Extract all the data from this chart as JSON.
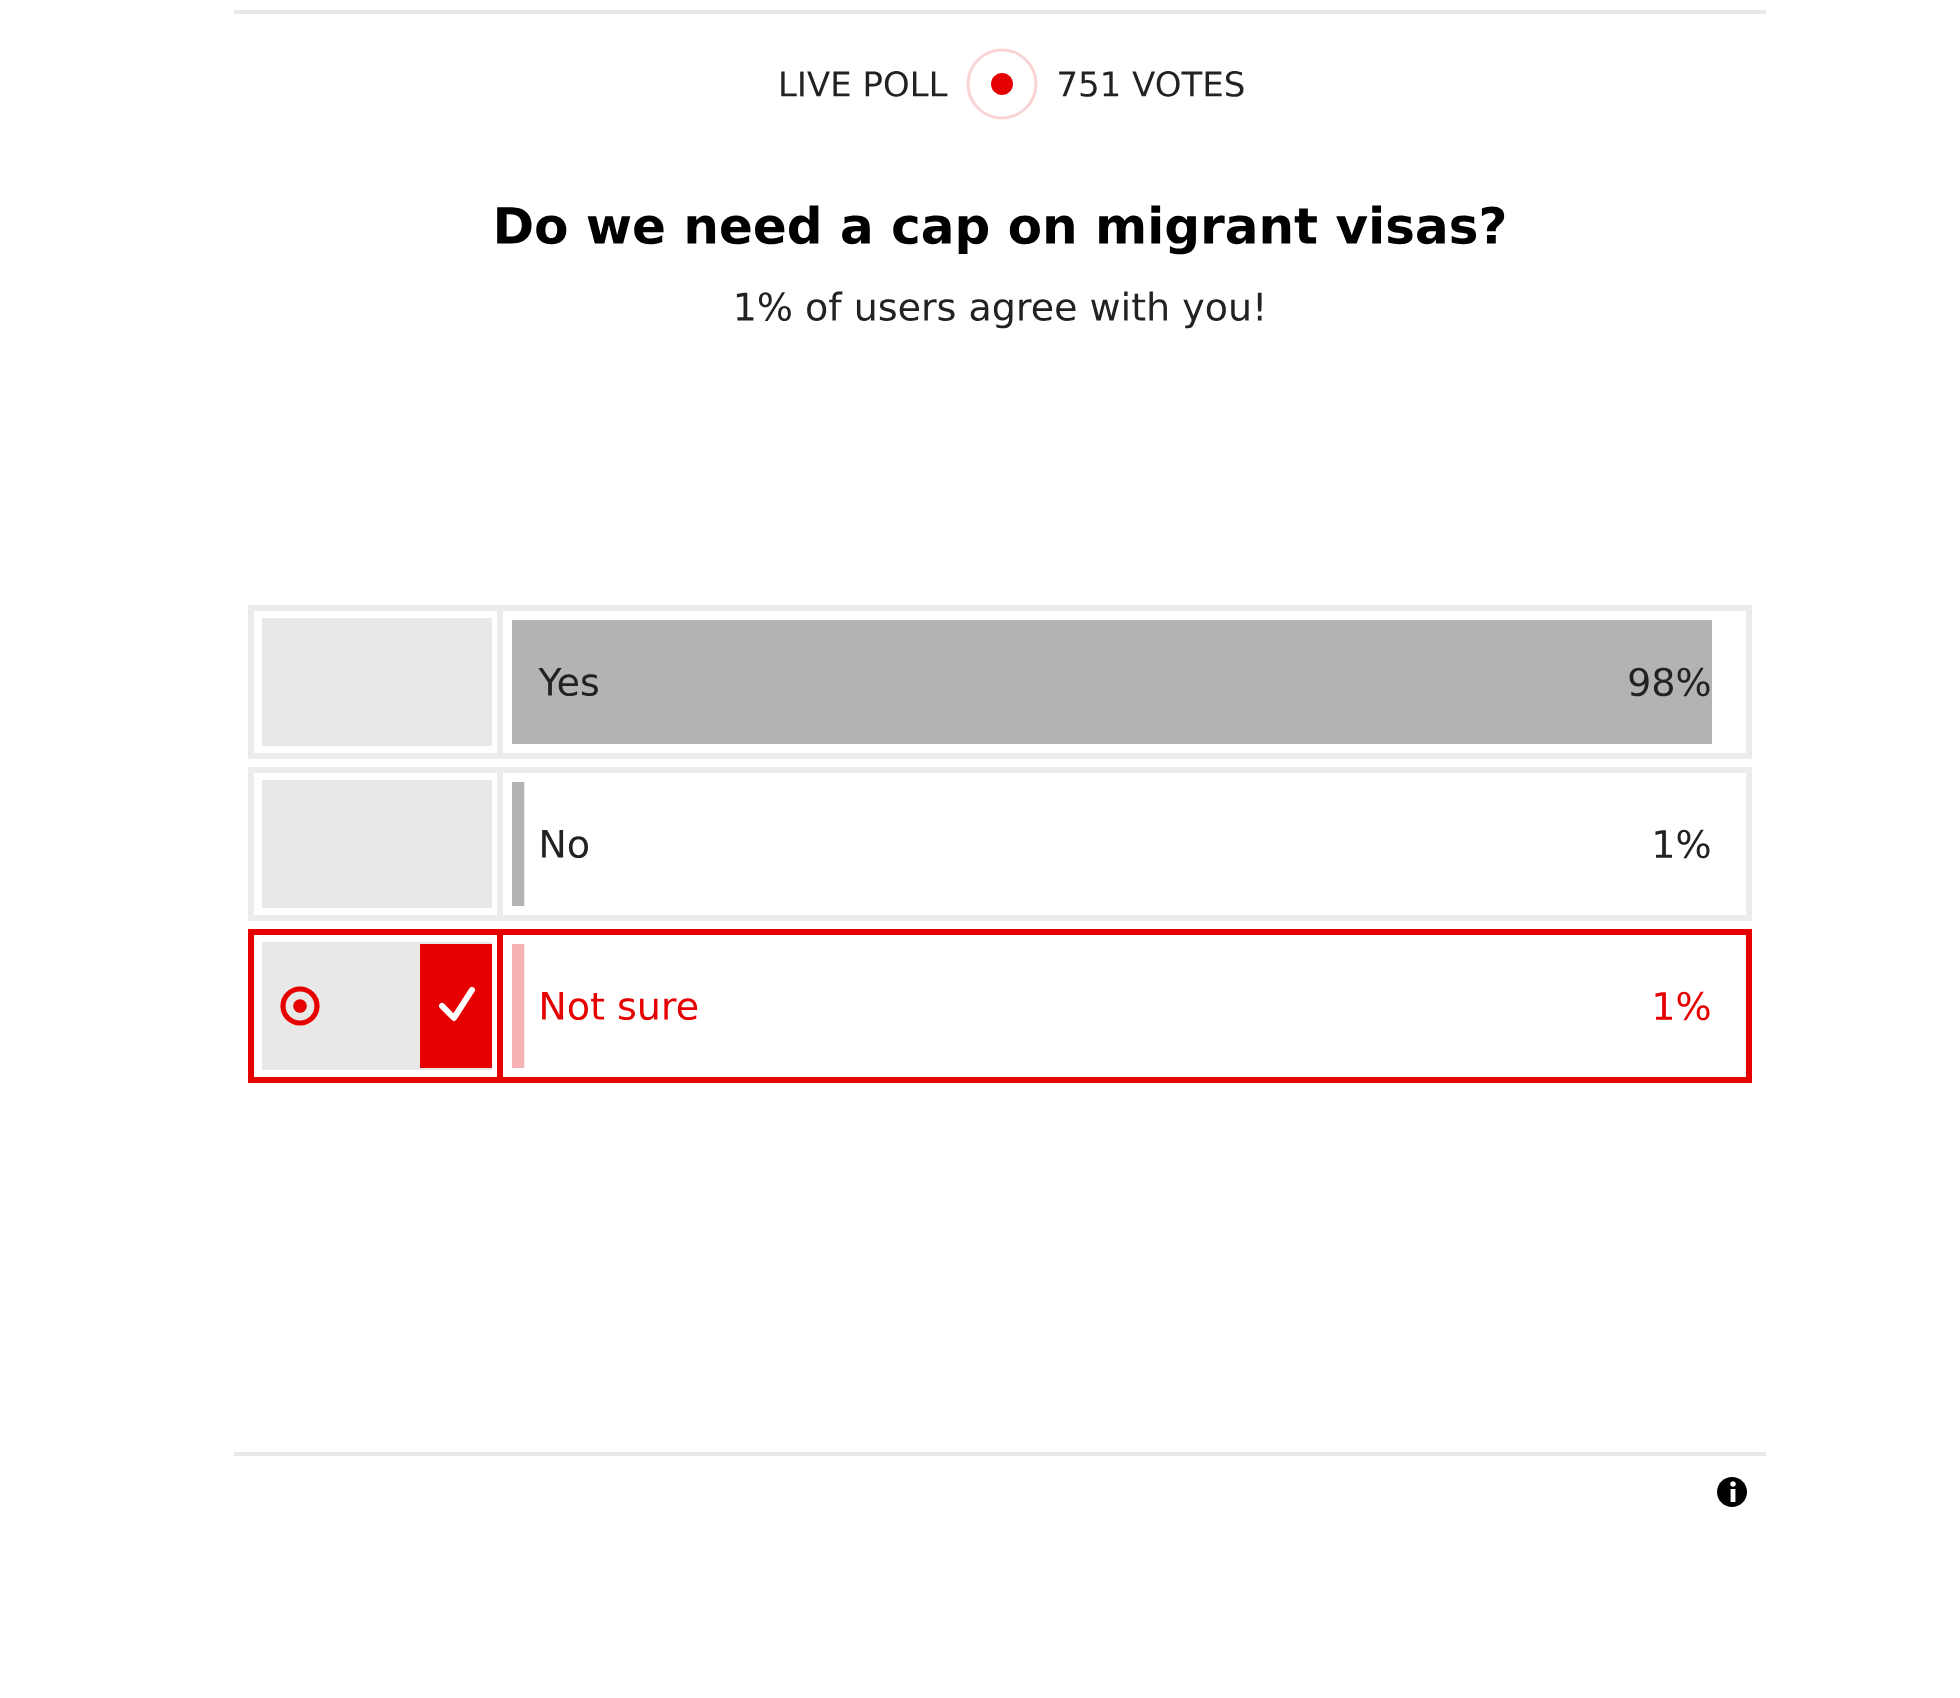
{
  "chart_data": {
    "type": "bar",
    "orientation": "horizontal",
    "title": "Do we need a cap on migrant visas?",
    "subtitle": "1% of users agree with you!",
    "annotations": [
      "LIVE POLL",
      "751 VOTES"
    ],
    "categories": [
      "Yes",
      "No",
      "Not sure"
    ],
    "values": [
      98,
      1,
      1
    ],
    "value_labels": [
      "98%",
      "1%",
      "1%"
    ],
    "colors": [
      "#b3b3b3",
      "#b3b3b3",
      "#f7b3b3"
    ],
    "tick_labels": "y"
  }
}
